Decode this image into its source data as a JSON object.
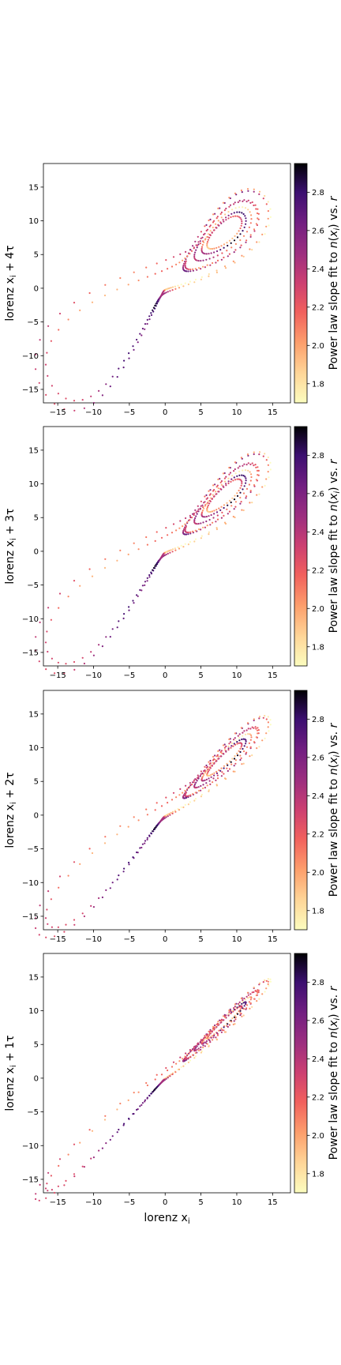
{
  "figure": {
    "xlabel": "lorenz x",
    "xlabel_sub": "i",
    "colorbar_label_parts": [
      "Power law slope fit to ",
      "n",
      "(",
      "x",
      "i",
      ") vs. ",
      "r"
    ]
  },
  "chart_data": [
    {
      "type": "scatter",
      "title": "",
      "ylabel": "lorenz x",
      "ylabel_sub": "i",
      "ylabel_suffix": " + 4τ",
      "xlim": [
        -17,
        17.5
      ],
      "ylim": [
        -17,
        18.5
      ],
      "xticks": [
        -15,
        -10,
        -5,
        0,
        5,
        10,
        15
      ],
      "yticks": [
        -15,
        -10,
        -5,
        0,
        5,
        10,
        15
      ],
      "tick_labels": [
        "−15",
        "−10",
        "−5",
        "0",
        "5",
        "10",
        "15"
      ],
      "colorbar": {
        "cmap": "magma_r",
        "range": [
          1.7,
          2.95
        ],
        "ticks": [
          1.8,
          2.0,
          2.2,
          2.4,
          2.6,
          2.8
        ],
        "tick_labels": [
          "1.8",
          "2.0",
          "2.2",
          "2.4",
          "2.6",
          "2.8"
        ]
      },
      "lag": 4
    },
    {
      "type": "scatter",
      "title": "",
      "ylabel": "lorenz x",
      "ylabel_sub": "i",
      "ylabel_suffix": " + 3τ",
      "xlim": [
        -17,
        17.5
      ],
      "ylim": [
        -17,
        18.5
      ],
      "xticks": [
        -15,
        -10,
        -5,
        0,
        5,
        10,
        15
      ],
      "yticks": [
        -15,
        -10,
        -5,
        0,
        5,
        10,
        15
      ],
      "tick_labels": [
        "−15",
        "−10",
        "−5",
        "0",
        "5",
        "10",
        "15"
      ],
      "colorbar": {
        "cmap": "magma_r",
        "range": [
          1.7,
          2.95
        ],
        "ticks": [
          1.8,
          2.0,
          2.2,
          2.4,
          2.6,
          2.8
        ],
        "tick_labels": [
          "1.8",
          "2.0",
          "2.2",
          "2.4",
          "2.6",
          "2.8"
        ]
      },
      "lag": 3
    },
    {
      "type": "scatter",
      "title": "",
      "ylabel": "lorenz x",
      "ylabel_sub": "i",
      "ylabel_suffix": " + 2τ",
      "xlim": [
        -17,
        17.5
      ],
      "ylim": [
        -17,
        18.5
      ],
      "xticks": [
        -15,
        -10,
        -5,
        0,
        5,
        10,
        15
      ],
      "yticks": [
        -15,
        -10,
        -5,
        0,
        5,
        10,
        15
      ],
      "tick_labels": [
        "−15",
        "−10",
        "−5",
        "0",
        "5",
        "10",
        "15"
      ],
      "colorbar": {
        "cmap": "magma_r",
        "range": [
          1.7,
          2.95
        ],
        "ticks": [
          1.8,
          2.0,
          2.2,
          2.4,
          2.6,
          2.8
        ],
        "tick_labels": [
          "1.8",
          "2.0",
          "2.2",
          "2.4",
          "2.6",
          "2.8"
        ]
      },
      "lag": 2
    },
    {
      "type": "scatter",
      "title": "",
      "ylabel": "lorenz x",
      "ylabel_sub": "i",
      "ylabel_suffix": " + 1τ",
      "xlim": [
        -17,
        17.5
      ],
      "ylim": [
        -17,
        18.5
      ],
      "xticks": [
        -15,
        -10,
        -5,
        0,
        5,
        10,
        15
      ],
      "yticks": [
        -15,
        -10,
        -5,
        0,
        5,
        10,
        15
      ],
      "tick_labels": [
        "−15",
        "−10",
        "−5",
        "0",
        "5",
        "10",
        "15"
      ],
      "colorbar": {
        "cmap": "magma_r",
        "range": [
          1.7,
          2.95
        ],
        "ticks": [
          1.8,
          2.0,
          2.2,
          2.4,
          2.6,
          2.8
        ],
        "tick_labels": [
          "1.8",
          "2.0",
          "2.2",
          "2.4",
          "2.6",
          "2.8"
        ]
      },
      "lag": 1
    }
  ]
}
